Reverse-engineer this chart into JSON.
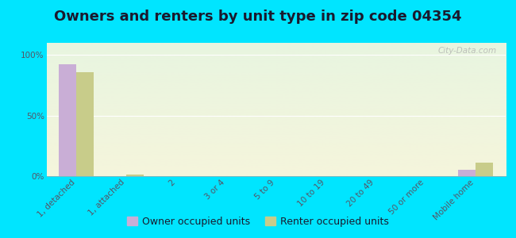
{
  "title": "Owners and renters by unit type in zip code 04354",
  "categories": [
    "1, detached",
    "1, attached",
    "2",
    "3 or 4",
    "5 to 9",
    "10 to 19",
    "20 to 49",
    "50 or more",
    "Mobile home"
  ],
  "owner_values": [
    92,
    0,
    0,
    0,
    0,
    0,
    0,
    0,
    5
  ],
  "renter_values": [
    86,
    1,
    0,
    0,
    0,
    0,
    0,
    0,
    11
  ],
  "owner_color": "#c9aed6",
  "renter_color": "#c8cc8a",
  "background_color": "#00e5ff",
  "grad_top_color": "#e8f5e0",
  "grad_bot_color": "#f5f5dc",
  "ylabel_ticks": [
    "0%",
    "50%",
    "100%"
  ],
  "ytick_vals": [
    0,
    50,
    100
  ],
  "ylim": [
    0,
    110
  ],
  "bar_width": 0.35,
  "legend_owner": "Owner occupied units",
  "legend_renter": "Renter occupied units",
  "title_fontsize": 13,
  "tick_fontsize": 7.5,
  "legend_fontsize": 9,
  "watermark": "City-Data.com",
  "title_color": "#1a1a2e",
  "tick_color": "#555566"
}
